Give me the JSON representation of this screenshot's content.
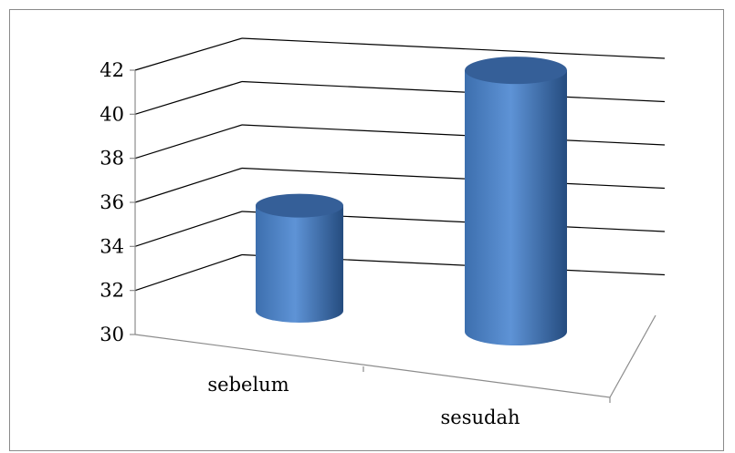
{
  "chart_data": {
    "type": "bar",
    "style": "3d-cylinder",
    "categories": [
      "sebelum",
      "sesudah"
    ],
    "values": [
      35,
      41.5
    ],
    "ylim": [
      30,
      42
    ],
    "yticks": [
      30,
      32,
      34,
      36,
      38,
      40,
      42
    ],
    "grid": true,
    "legend": "none",
    "colors": {
      "bar_light": "#5e93d6",
      "bar_mid": "#3d6fae",
      "bar_dark": "#254c7f",
      "bar_top": "#355f98"
    }
  }
}
